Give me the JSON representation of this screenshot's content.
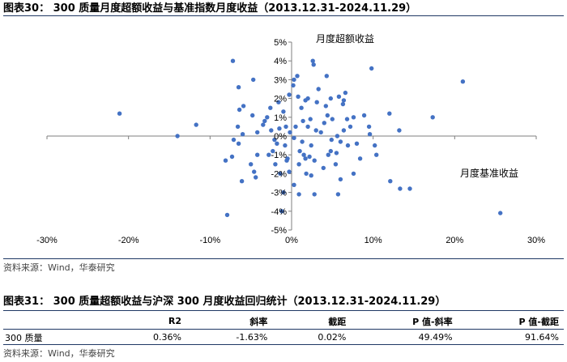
{
  "figure1": {
    "title": "图表30：  300 质量月度超额收益与基准指数月度收益（2013.12.31-2024.11.29）",
    "source": "资料来源：Wind，华泰研究"
  },
  "figure2": {
    "title": "图表31：  300 质量超额收益与沪深 300 月度收益回归统计（2013.12.31-2024.11.29）",
    "source": "资料来源：Wind，华泰研究",
    "table": {
      "headers": [
        "",
        "R2",
        "斜率",
        "截距",
        "P 值-斜率",
        "P 值-截距"
      ],
      "rows": [
        [
          "300 质量",
          "0.36%",
          "-1.63%",
          "0.02%",
          "49.49%",
          "91.64%"
        ]
      ]
    }
  },
  "chart_data": {
    "type": "scatter",
    "ylabel": "月度超额收益",
    "xlabel": "月度基准收益",
    "xlim": [
      -30,
      30
    ],
    "ylim": [
      -5,
      5
    ],
    "x_ticks": [
      -30,
      -20,
      -10,
      0,
      10,
      20,
      30
    ],
    "y_ticks": [
      -5,
      -4,
      -3,
      -2,
      -1,
      0,
      1,
      2,
      3,
      4,
      5
    ],
    "x_tick_labels": [
      "-30%",
      "-20%",
      "-10%",
      "0%",
      "10%",
      "20%",
      "30%"
    ],
    "y_tick_labels": [
      "-5%",
      "-4%",
      "-3%",
      "-2%",
      "-1%",
      "0%",
      "1%",
      "2%",
      "3%",
      "4%",
      "5%"
    ],
    "marker_color": "#4472c4",
    "x_unit": "%",
    "y_unit": "%",
    "points": [
      [
        -21.1,
        1.2
      ],
      [
        -14.0,
        0.0
      ],
      [
        -11.7,
        0.6
      ],
      [
        25.6,
        -4.1
      ],
      [
        21.0,
        2.9
      ],
      [
        17.3,
        1.0
      ],
      [
        14.5,
        -2.8
      ],
      [
        13.3,
        -2.8
      ],
      [
        12.1,
        -2.4
      ],
      [
        12.0,
        1.2
      ],
      [
        13.2,
        0.3
      ],
      [
        9.8,
        3.6
      ],
      [
        -7.2,
        4.0
      ],
      [
        -6.5,
        2.6
      ],
      [
        -5.9,
        1.6
      ],
      [
        -6.4,
        1.4
      ],
      [
        -7.9,
        -4.2
      ],
      [
        -7.3,
        -1.1
      ],
      [
        -8.1,
        -1.3
      ],
      [
        -7.1,
        -0.2
      ],
      [
        -6.6,
        0.5
      ],
      [
        -6.0,
        0.1
      ],
      [
        -6.5,
        -0.4
      ],
      [
        -6.1,
        -2.4
      ],
      [
        -5.0,
        -1.5
      ],
      [
        -4.8,
        1.1
      ],
      [
        -4.2,
        0.2
      ],
      [
        -4.7,
        3.0
      ],
      [
        -4.4,
        -2.2
      ],
      [
        -4.6,
        -1.9
      ],
      [
        -4.2,
        -1.0
      ],
      [
        -3.5,
        0.6
      ],
      [
        -3.0,
        1.0
      ],
      [
        -2.6,
        1.5
      ],
      [
        -2.1,
        -0.2
      ],
      [
        -2.0,
        -1.5
      ],
      [
        -2.5,
        0.3
      ],
      [
        -3.3,
        0.8
      ],
      [
        -2.3,
        -0.8
      ],
      [
        -1.8,
        -0.4
      ],
      [
        -1.5,
        0.4
      ],
      [
        -1.4,
        -2.0
      ],
      [
        -1.2,
        -4.0
      ],
      [
        -1.0,
        -3.0
      ],
      [
        -1.0,
        1.3
      ],
      [
        -0.7,
        0.5
      ],
      [
        -0.5,
        -1.2
      ],
      [
        -0.3,
        2.2
      ],
      [
        -0.3,
        -1.9
      ],
      [
        -0.2,
        0.2
      ],
      [
        0.2,
        2.7
      ],
      [
        0.3,
        3.0
      ],
      [
        0.3,
        -0.1
      ],
      [
        0.3,
        -2.6
      ],
      [
        0.5,
        0.5
      ],
      [
        0.7,
        3.2
      ],
      [
        0.8,
        2.1
      ],
      [
        1.0,
        -0.8
      ],
      [
        0.9,
        -3.1
      ],
      [
        1.2,
        1.5
      ],
      [
        1.3,
        -0.3
      ],
      [
        1.4,
        0.8
      ],
      [
        1.7,
        1.9
      ],
      [
        1.7,
        -1.2
      ],
      [
        1.8,
        -2.0
      ],
      [
        2.0,
        2.0
      ],
      [
        2.0,
        0.5
      ],
      [
        2.2,
        -1.1
      ],
      [
        2.3,
        0.9
      ],
      [
        2.4,
        -0.5
      ],
      [
        2.4,
        -2.1
      ],
      [
        2.6,
        4.0
      ],
      [
        2.7,
        3.8
      ],
      [
        2.8,
        -1.3
      ],
      [
        2.8,
        -3.1
      ],
      [
        3.0,
        0.3
      ],
      [
        3.1,
        1.8
      ],
      [
        3.3,
        2.5
      ],
      [
        4.0,
        0.7
      ],
      [
        4.3,
        3.2
      ],
      [
        4.4,
        1.1
      ],
      [
        4.5,
        -1.0
      ],
      [
        4.8,
        -0.8
      ],
      [
        4.8,
        2.0
      ],
      [
        4.9,
        -0.2
      ],
      [
        5.0,
        0.9
      ],
      [
        5.4,
        -1.5
      ],
      [
        5.5,
        -0.9
      ],
      [
        5.6,
        0.0
      ],
      [
        5.7,
        -3.1
      ],
      [
        6.0,
        -0.3
      ],
      [
        6.3,
        1.7
      ],
      [
        6.4,
        0.3
      ],
      [
        6.6,
        2.3
      ],
      [
        6.4,
        1.9
      ],
      [
        6.9,
        -0.5
      ],
      [
        7.2,
        0.5
      ],
      [
        7.6,
        1.0
      ],
      [
        6.0,
        -2.3
      ],
      [
        7.6,
        -2.0
      ],
      [
        8.0,
        -0.4
      ],
      [
        8.4,
        -1.2
      ],
      [
        8.9,
        1.1
      ],
      [
        9.5,
        0.5
      ],
      [
        9.6,
        0.1
      ],
      [
        10.2,
        -0.5
      ],
      [
        10.4,
        -1.0
      ],
      [
        5.8,
        2.1
      ],
      [
        3.6,
        0.2
      ],
      [
        3.9,
        -1.7
      ],
      [
        1.5,
        -1.0
      ],
      [
        0.9,
        -1.5
      ],
      [
        -0.8,
        -0.5
      ],
      [
        -1.6,
        1.8
      ],
      [
        -0.6,
        -1.3
      ],
      [
        -2.8,
        -1.0
      ],
      [
        4.2,
        1.6
      ],
      [
        6.8,
        0.9
      ]
    ]
  }
}
